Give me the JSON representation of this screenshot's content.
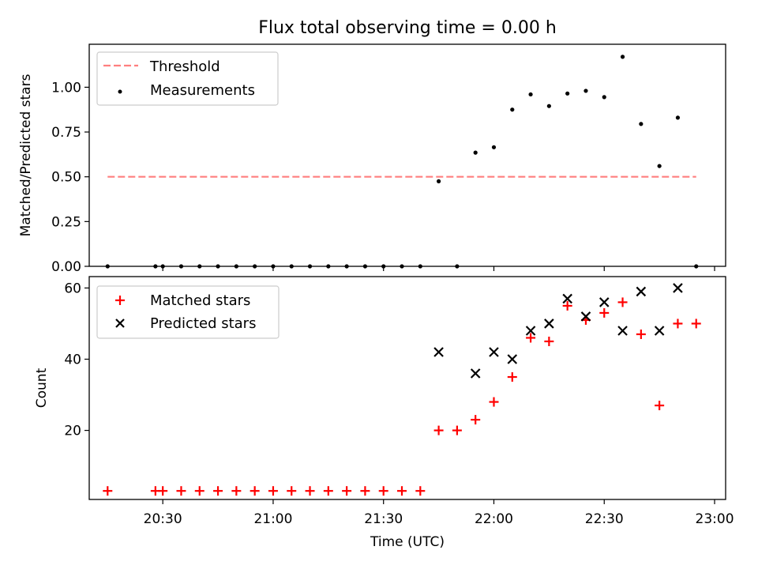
{
  "figure": {
    "title": "Flux total observing time = 0.00 h"
  },
  "chart_data": [
    {
      "type": "scatter",
      "title": "Flux total observing time = 0.00 h",
      "xlabel": "",
      "ylabel": "Matched/Predicted stars",
      "xlim": [
        "20:10",
        "23:03"
      ],
      "ylim": [
        0,
        1.24
      ],
      "yticks": [
        0,
        0.25,
        0.5,
        0.75,
        1.0
      ],
      "ytick_labels": [
        "0.00",
        "0.25",
        "0.50",
        "0.75",
        "1.00"
      ],
      "legend_position": "top-left",
      "threshold": {
        "name": "Threshold",
        "y": 0.5,
        "x": [
          "20:15",
          "22:55"
        ],
        "color": "#ff7f7f",
        "style": "dashed"
      },
      "series": [
        {
          "name": "Measurements",
          "marker": "dot",
          "color": "#000000",
          "points": [
            [
              "20:15",
              0.0
            ],
            [
              "20:28",
              0.0
            ],
            [
              "20:30",
              0.0
            ],
            [
              "20:35",
              0.0
            ],
            [
              "20:40",
              0.0
            ],
            [
              "20:45",
              0.0
            ],
            [
              "20:50",
              0.0
            ],
            [
              "20:55",
              0.0
            ],
            [
              "21:00",
              0.0
            ],
            [
              "21:05",
              0.0
            ],
            [
              "21:10",
              0.0
            ],
            [
              "21:15",
              0.0
            ],
            [
              "21:20",
              0.0
            ],
            [
              "21:25",
              0.0
            ],
            [
              "21:30",
              0.0
            ],
            [
              "21:35",
              0.0
            ],
            [
              "21:40",
              0.0
            ],
            [
              "21:45",
              0.475
            ],
            [
              "21:50",
              0.0
            ],
            [
              "21:55",
              0.635
            ],
            [
              "22:00",
              0.665
            ],
            [
              "22:05",
              0.875
            ],
            [
              "22:10",
              0.96
            ],
            [
              "22:15",
              0.895
            ],
            [
              "22:20",
              0.965
            ],
            [
              "22:25",
              0.98
            ],
            [
              "22:30",
              0.945
            ],
            [
              "22:35",
              1.17
            ],
            [
              "22:40",
              0.795
            ],
            [
              "22:45",
              0.56
            ],
            [
              "22:50",
              0.83
            ],
            [
              "22:55",
              0.0
            ]
          ]
        }
      ]
    },
    {
      "type": "scatter",
      "xlabel": "Time (UTC)",
      "ylabel": "Count",
      "xlim": [
        "20:10",
        "23:03"
      ],
      "ylim": [
        0.6,
        63.2
      ],
      "yticks": [
        20,
        40,
        60
      ],
      "xticks": [
        "20:30",
        "21:00",
        "21:30",
        "22:00",
        "22:30",
        "23:00"
      ],
      "legend_position": "top-left",
      "series": [
        {
          "name": "Matched stars",
          "marker": "plus",
          "color": "#ff0000",
          "points": [
            [
              "20:15",
              3
            ],
            [
              "20:28",
              3
            ],
            [
              "20:30",
              3
            ],
            [
              "20:35",
              3
            ],
            [
              "20:40",
              3
            ],
            [
              "20:45",
              3
            ],
            [
              "20:50",
              3
            ],
            [
              "20:55",
              3
            ],
            [
              "21:00",
              3
            ],
            [
              "21:05",
              3
            ],
            [
              "21:10",
              3
            ],
            [
              "21:15",
              3
            ],
            [
              "21:20",
              3
            ],
            [
              "21:25",
              3
            ],
            [
              "21:30",
              3
            ],
            [
              "21:35",
              3
            ],
            [
              "21:40",
              3
            ],
            [
              "21:45",
              20
            ],
            [
              "21:50",
              20
            ],
            [
              "21:55",
              23
            ],
            [
              "22:00",
              28
            ],
            [
              "22:05",
              35
            ],
            [
              "22:10",
              46
            ],
            [
              "22:15",
              45
            ],
            [
              "22:20",
              55
            ],
            [
              "22:25",
              51
            ],
            [
              "22:30",
              53
            ],
            [
              "22:35",
              56
            ],
            [
              "22:40",
              47
            ],
            [
              "22:45",
              27
            ],
            [
              "22:50",
              50
            ],
            [
              "22:55",
              50
            ]
          ]
        },
        {
          "name": "Predicted stars",
          "marker": "x",
          "color": "#000000",
          "points": [
            [
              "21:45",
              42
            ],
            [
              "21:55",
              36
            ],
            [
              "22:00",
              42
            ],
            [
              "22:05",
              40
            ],
            [
              "22:10",
              48
            ],
            [
              "22:15",
              50
            ],
            [
              "22:20",
              57
            ],
            [
              "22:25",
              52
            ],
            [
              "22:30",
              56
            ],
            [
              "22:35",
              48
            ],
            [
              "22:40",
              59
            ],
            [
              "22:45",
              48
            ],
            [
              "22:50",
              60
            ]
          ]
        }
      ]
    }
  ]
}
